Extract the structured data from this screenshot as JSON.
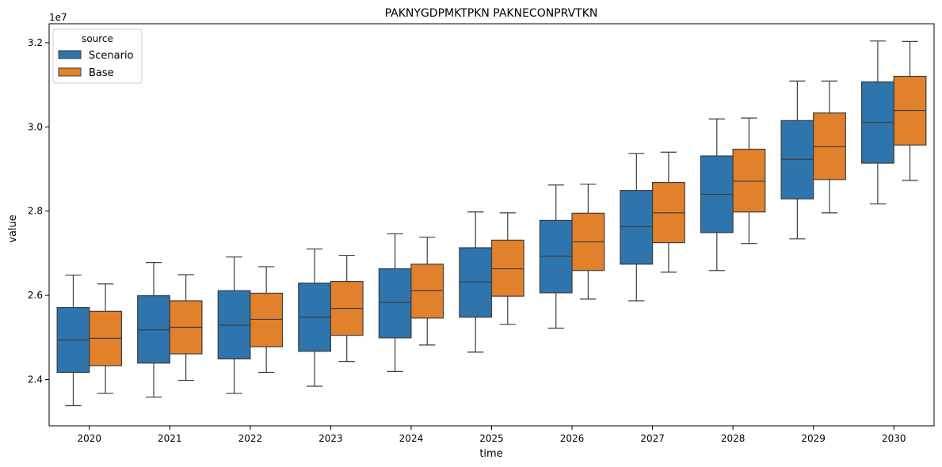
{
  "chart_data": {
    "type": "box",
    "title": "PAKNYGDPMKTPKN PAKNECONPRVTKN",
    "xlabel": "time",
    "ylabel": "value",
    "y_scale_label": "1e7",
    "y_scale_factor": 10000000,
    "ylim": [
      22900000,
      32450000
    ],
    "yticks": [
      24000000,
      26000000,
      28000000,
      30000000,
      32000000
    ],
    "ytick_labels": [
      "2.4",
      "2.6",
      "2.8",
      "3.0",
      "3.2"
    ],
    "categories": [
      "2020",
      "2021",
      "2022",
      "2023",
      "2024",
      "2025",
      "2026",
      "2027",
      "2028",
      "2029",
      "2030"
    ],
    "legend": {
      "title": "source",
      "placement": "top-left"
    },
    "series": [
      {
        "name": "Scenario",
        "color": "#2e75ad",
        "boxes": [
          {
            "whislo": 23380000,
            "q1": 24170000,
            "med": 24940000,
            "q3": 25710000,
            "whishi": 26480000
          },
          {
            "whislo": 23580000,
            "q1": 24390000,
            "med": 25180000,
            "q3": 25990000,
            "whishi": 26780000
          },
          {
            "whislo": 23670000,
            "q1": 24490000,
            "med": 25290000,
            "q3": 26110000,
            "whishi": 26910000
          },
          {
            "whislo": 23840000,
            "q1": 24670000,
            "med": 25480000,
            "q3": 26290000,
            "whishi": 27100000
          },
          {
            "whislo": 24190000,
            "q1": 24990000,
            "med": 25830000,
            "q3": 26630000,
            "whishi": 27460000
          },
          {
            "whislo": 24650000,
            "q1": 25480000,
            "med": 26320000,
            "q3": 27130000,
            "whishi": 27980000
          },
          {
            "whislo": 25220000,
            "q1": 26060000,
            "med": 26930000,
            "q3": 27780000,
            "whishi": 28620000
          },
          {
            "whislo": 25870000,
            "q1": 26740000,
            "med": 27630000,
            "q3": 28490000,
            "whishi": 29370000
          },
          {
            "whislo": 26590000,
            "q1": 27490000,
            "med": 28400000,
            "q3": 29310000,
            "whishi": 30190000
          },
          {
            "whislo": 27340000,
            "q1": 28290000,
            "med": 29230000,
            "q3": 30150000,
            "whishi": 31090000
          },
          {
            "whislo": 28170000,
            "q1": 29140000,
            "med": 30110000,
            "q3": 31070000,
            "whishi": 32040000
          }
        ]
      },
      {
        "name": "Base",
        "color": "#e1812c",
        "boxes": [
          {
            "whislo": 23670000,
            "q1": 24330000,
            "med": 24980000,
            "q3": 25620000,
            "whishi": 26270000
          },
          {
            "whislo": 23980000,
            "q1": 24610000,
            "med": 25240000,
            "q3": 25870000,
            "whishi": 26490000
          },
          {
            "whislo": 24170000,
            "q1": 24780000,
            "med": 25430000,
            "q3": 26050000,
            "whishi": 26680000
          },
          {
            "whislo": 24430000,
            "q1": 25050000,
            "med": 25690000,
            "q3": 26330000,
            "whishi": 26950000
          },
          {
            "whislo": 24820000,
            "q1": 25460000,
            "med": 26110000,
            "q3": 26740000,
            "whishi": 27380000
          },
          {
            "whislo": 25310000,
            "q1": 25980000,
            "med": 26630000,
            "q3": 27310000,
            "whishi": 27960000
          },
          {
            "whislo": 25910000,
            "q1": 26590000,
            "med": 27270000,
            "q3": 27950000,
            "whishi": 28640000
          },
          {
            "whislo": 26550000,
            "q1": 27250000,
            "med": 27960000,
            "q3": 28680000,
            "whishi": 29400000
          },
          {
            "whislo": 27230000,
            "q1": 27980000,
            "med": 28710000,
            "q3": 29470000,
            "whishi": 30210000
          },
          {
            "whislo": 27960000,
            "q1": 28750000,
            "med": 29530000,
            "q3": 30330000,
            "whishi": 31090000
          },
          {
            "whislo": 28730000,
            "q1": 29570000,
            "med": 30390000,
            "q3": 31200000,
            "whishi": 32030000
          }
        ]
      }
    ]
  }
}
